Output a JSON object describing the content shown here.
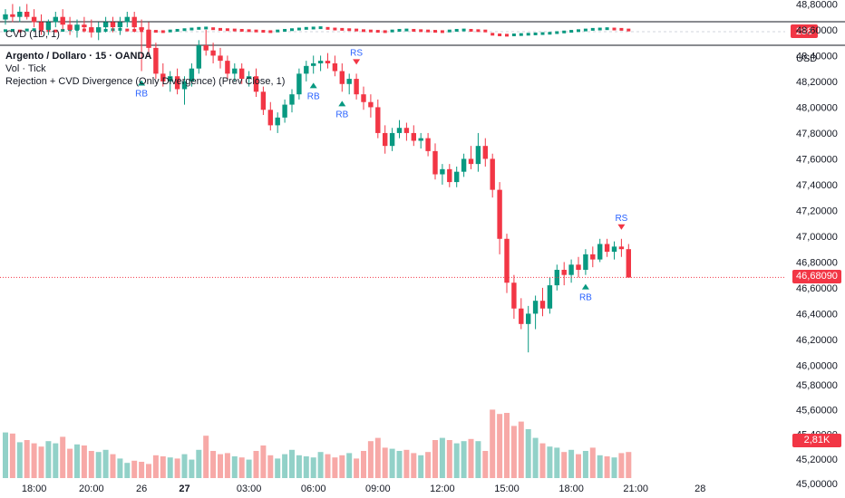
{
  "cvd_pane": {
    "title": "CVD (1D, 1)",
    "last_value": "298",
    "tag_color": "#F23645"
  },
  "legend": {
    "symbol": "Argento / Dollaro · 15 · OANDA",
    "volume": "Vol · Tick",
    "indicator": "Rejection + CVD Divergence (Only Divergence) (Prev Close, 1)"
  },
  "price_axis": {
    "currency": "USD"
  },
  "last_price": {
    "label": "46,68090",
    "value": 46.6809,
    "color": "#F23645"
  },
  "volume_tag": {
    "label": "2,81K",
    "color": "#F23645"
  },
  "colors": {
    "up": "#089981",
    "down": "#F23645",
    "vol_up": "#92D1C8",
    "vol_down": "#F7A9A7",
    "signal_text": "#2962FF"
  },
  "chart_data": {
    "type": "candlestick",
    "y_ticks": [
      "46,00000",
      "46,20000",
      "46,40000",
      "46,60000",
      "46,80000",
      "47,00000",
      "47,20000",
      "47,40000",
      "47,60000",
      "47,80000",
      "48,00000",
      "48,20000",
      "48,40000",
      "48,60000",
      "48,80000"
    ],
    "y_tick_values": [
      46.0,
      46.2,
      46.4,
      46.6,
      46.8,
      47.0,
      47.2,
      47.4,
      47.6,
      47.8,
      48.0,
      48.2,
      48.4,
      48.6,
      48.8
    ],
    "lower_ticks": [
      "45,00000",
      "45,20000",
      "45,40000",
      "45,60000",
      "45,80000"
    ],
    "lower_tick_values": [
      45.0,
      45.2,
      45.4,
      45.6,
      45.8
    ],
    "x_ticks": [
      {
        "bar": 4,
        "label": "18:00",
        "bold": false
      },
      {
        "bar": 12,
        "label": "20:00",
        "bold": false
      },
      {
        "bar": 19,
        "label": "26",
        "bold": false
      },
      {
        "bar": 25,
        "label": "27",
        "bold": true
      },
      {
        "bar": 34,
        "label": "03:00",
        "bold": false
      },
      {
        "bar": 43,
        "label": "06:00",
        "bold": false
      },
      {
        "bar": 52,
        "label": "09:00",
        "bold": false
      },
      {
        "bar": 61,
        "label": "12:00",
        "bold": false
      },
      {
        "bar": 70,
        "label": "15:00",
        "bold": false
      },
      {
        "bar": 79,
        "label": "18:00",
        "bold": false
      },
      {
        "bar": 88,
        "label": "21:00",
        "bold": false
      },
      {
        "bar": 97,
        "label": "28",
        "bold": false
      }
    ],
    "ohlc": [
      [
        48.68,
        48.76,
        48.64,
        48.72
      ],
      [
        48.72,
        48.8,
        48.66,
        48.7
      ],
      [
        48.7,
        48.78,
        48.66,
        48.74
      ],
      [
        48.74,
        48.8,
        48.68,
        48.7
      ],
      [
        48.7,
        48.76,
        48.62,
        48.66
      ],
      [
        48.66,
        48.72,
        48.56,
        48.6
      ],
      [
        48.6,
        48.68,
        48.56,
        48.66
      ],
      [
        48.66,
        48.74,
        48.62,
        48.7
      ],
      [
        48.7,
        48.76,
        48.6,
        48.64
      ],
      [
        48.64,
        48.7,
        48.56,
        48.6
      ],
      [
        48.6,
        48.68,
        48.54,
        48.64
      ],
      [
        48.64,
        48.7,
        48.58,
        48.62
      ],
      [
        48.62,
        48.68,
        48.54,
        48.58
      ],
      [
        48.58,
        48.66,
        48.52,
        48.62
      ],
      [
        48.62,
        48.7,
        48.58,
        48.66
      ],
      [
        48.66,
        48.7,
        48.58,
        48.62
      ],
      [
        48.62,
        48.7,
        48.56,
        48.66
      ],
      [
        48.66,
        48.74,
        48.62,
        48.7
      ],
      [
        48.7,
        48.74,
        48.58,
        48.62
      ],
      [
        48.62,
        48.68,
        48.28,
        48.6
      ],
      [
        48.6,
        48.66,
        48.4,
        48.46
      ],
      [
        48.46,
        48.5,
        48.22,
        48.26
      ],
      [
        48.26,
        48.34,
        48.16,
        48.2
      ],
      [
        48.2,
        48.28,
        48.12,
        48.24
      ],
      [
        48.24,
        48.3,
        48.1,
        48.14
      ],
      [
        48.14,
        48.24,
        48.02,
        48.2
      ],
      [
        48.2,
        48.34,
        48.16,
        48.3
      ],
      [
        48.3,
        48.52,
        48.26,
        48.48
      ],
      [
        48.48,
        48.6,
        48.4,
        48.44
      ],
      [
        48.44,
        48.5,
        48.34,
        48.4
      ],
      [
        48.4,
        48.46,
        48.3,
        48.36
      ],
      [
        48.36,
        48.4,
        48.22,
        48.26
      ],
      [
        48.26,
        48.34,
        48.2,
        48.3
      ],
      [
        48.3,
        48.34,
        48.18,
        48.22
      ],
      [
        48.22,
        48.28,
        48.16,
        48.24
      ],
      [
        48.24,
        48.3,
        48.08,
        48.12
      ],
      [
        48.12,
        48.16,
        47.94,
        47.98
      ],
      [
        47.98,
        48.04,
        47.82,
        47.86
      ],
      [
        47.86,
        47.96,
        47.8,
        47.92
      ],
      [
        47.92,
        48.06,
        47.88,
        48.02
      ],
      [
        48.02,
        48.14,
        47.96,
        48.1
      ],
      [
        48.1,
        48.3,
        48.06,
        48.26
      ],
      [
        48.26,
        48.36,
        48.2,
        48.32
      ],
      [
        48.32,
        48.4,
        48.26,
        48.34
      ],
      [
        48.34,
        48.4,
        48.28,
        48.36
      ],
      [
        48.36,
        48.42,
        48.3,
        48.34
      ],
      [
        48.34,
        48.4,
        48.24,
        48.28
      ],
      [
        48.28,
        48.34,
        48.12,
        48.18
      ],
      [
        48.18,
        48.26,
        48.1,
        48.22
      ],
      [
        48.22,
        48.26,
        48.06,
        48.1
      ],
      [
        48.1,
        48.16,
        47.98,
        48.04
      ],
      [
        48.04,
        48.1,
        47.92,
        48.0
      ],
      [
        48.0,
        48.06,
        47.76,
        47.8
      ],
      [
        47.8,
        47.86,
        47.64,
        47.7
      ],
      [
        47.7,
        47.84,
        47.66,
        47.8
      ],
      [
        47.8,
        47.9,
        47.76,
        47.84
      ],
      [
        47.84,
        47.88,
        47.74,
        47.8
      ],
      [
        47.8,
        47.86,
        47.7,
        47.74
      ],
      [
        47.74,
        47.8,
        47.68,
        47.76
      ],
      [
        47.76,
        47.8,
        47.62,
        47.66
      ],
      [
        47.66,
        47.72,
        47.44,
        47.48
      ],
      [
        47.48,
        47.56,
        47.4,
        47.52
      ],
      [
        47.52,
        47.56,
        47.38,
        47.42
      ],
      [
        47.42,
        47.54,
        47.38,
        47.5
      ],
      [
        47.5,
        47.64,
        47.46,
        47.6
      ],
      [
        47.6,
        47.7,
        47.52,
        47.56
      ],
      [
        47.56,
        47.8,
        47.5,
        47.7
      ],
      [
        47.7,
        47.76,
        47.54,
        47.6
      ],
      [
        47.6,
        47.64,
        47.3,
        47.36
      ],
      [
        47.36,
        47.42,
        46.86,
        46.98
      ],
      [
        46.98,
        47.02,
        46.56,
        46.64
      ],
      [
        46.64,
        46.7,
        46.36,
        46.44
      ],
      [
        46.44,
        46.52,
        46.28,
        46.32
      ],
      [
        46.32,
        46.46,
        46.1,
        46.4
      ],
      [
        46.4,
        46.54,
        46.28,
        46.5
      ],
      [
        46.5,
        46.6,
        46.38,
        46.44
      ],
      [
        46.44,
        46.68,
        46.4,
        46.62
      ],
      [
        46.62,
        46.78,
        46.58,
        46.74
      ],
      [
        46.74,
        46.8,
        46.62,
        46.7
      ],
      [
        46.7,
        46.82,
        46.64,
        46.78
      ],
      [
        46.78,
        46.84,
        46.68,
        46.74
      ],
      [
        46.74,
        46.9,
        46.7,
        46.86
      ],
      [
        46.86,
        46.92,
        46.76,
        46.82
      ],
      [
        46.82,
        46.98,
        46.8,
        46.94
      ],
      [
        46.94,
        46.98,
        46.84,
        46.88
      ],
      [
        46.88,
        46.96,
        46.82,
        46.92
      ],
      [
        46.92,
        46.98,
        46.84,
        46.9
      ],
      [
        46.9,
        46.94,
        46.68,
        46.68
      ]
    ],
    "volume": [
      2.1,
      2.05,
      1.65,
      1.75,
      1.6,
      1.45,
      1.7,
      1.6,
      1.9,
      1.35,
      1.55,
      1.5,
      1.25,
      1.2,
      1.3,
      1.1,
      0.9,
      0.7,
      0.8,
      0.75,
      0.65,
      1.05,
      1.0,
      0.95,
      0.9,
      1.1,
      0.85,
      1.3,
      1.95,
      1.25,
      1.1,
      1.15,
      1.0,
      0.95,
      0.85,
      1.25,
      1.5,
      1.05,
      0.9,
      1.1,
      1.3,
      1.05,
      1.0,
      0.95,
      1.2,
      1.1,
      0.95,
      1.05,
      1.15,
      0.9,
      1.25,
      1.7,
      1.85,
      1.4,
      1.35,
      1.25,
      1.3,
      1.15,
      1.05,
      1.2,
      1.75,
      1.85,
      1.75,
      1.6,
      1.7,
      1.8,
      1.7,
      1.25,
      3.15,
      2.95,
      3.0,
      2.4,
      2.6,
      2.25,
      1.85,
      1.6,
      1.45,
      1.4,
      1.2,
      1.3,
      1.1,
      1.25,
      1.4,
      1.05,
      1.0,
      0.95,
      1.15,
      1.2
    ],
    "signals": [
      {
        "bar": 19,
        "type": "RB"
      },
      {
        "bar": 43,
        "type": "RB"
      },
      {
        "bar": 47,
        "type": "RB"
      },
      {
        "bar": 49,
        "type": "RS"
      },
      {
        "bar": 81,
        "type": "RB"
      },
      {
        "bar": 86,
        "type": "RS"
      }
    ],
    "cvd": [
      0.12,
      0.14,
      0.1,
      0.16,
      0.18,
      0.15,
      0.12,
      0.1,
      0.14,
      0.18,
      0.2,
      0.16,
      0.12,
      0.1,
      0.14,
      0.18,
      0.2,
      0.16,
      0.14,
      0.12,
      0.1,
      0.08,
      0.06,
      0.1,
      0.14,
      0.18,
      0.22,
      0.26,
      0.28,
      0.24,
      0.2,
      0.18,
      0.16,
      0.14,
      0.12,
      0.1,
      0.08,
      0.06,
      0.1,
      0.14,
      0.18,
      0.22,
      0.26,
      0.28,
      0.3,
      0.26,
      0.22,
      0.2,
      0.18,
      0.16,
      0.12,
      0.1,
      0.08,
      0.06,
      0.1,
      0.14,
      0.16,
      0.14,
      0.12,
      0.1,
      0.08,
      0.06,
      0.1,
      0.14,
      0.16,
      0.14,
      0.12,
      0.1,
      -0.1,
      -0.14,
      -0.16,
      -0.14,
      -0.12,
      -0.1,
      -0.08,
      -0.06,
      -0.04,
      0.0,
      0.04,
      0.08,
      0.12,
      0.16,
      0.2,
      0.22,
      0.24,
      0.22,
      0.2,
      0.16
    ]
  }
}
